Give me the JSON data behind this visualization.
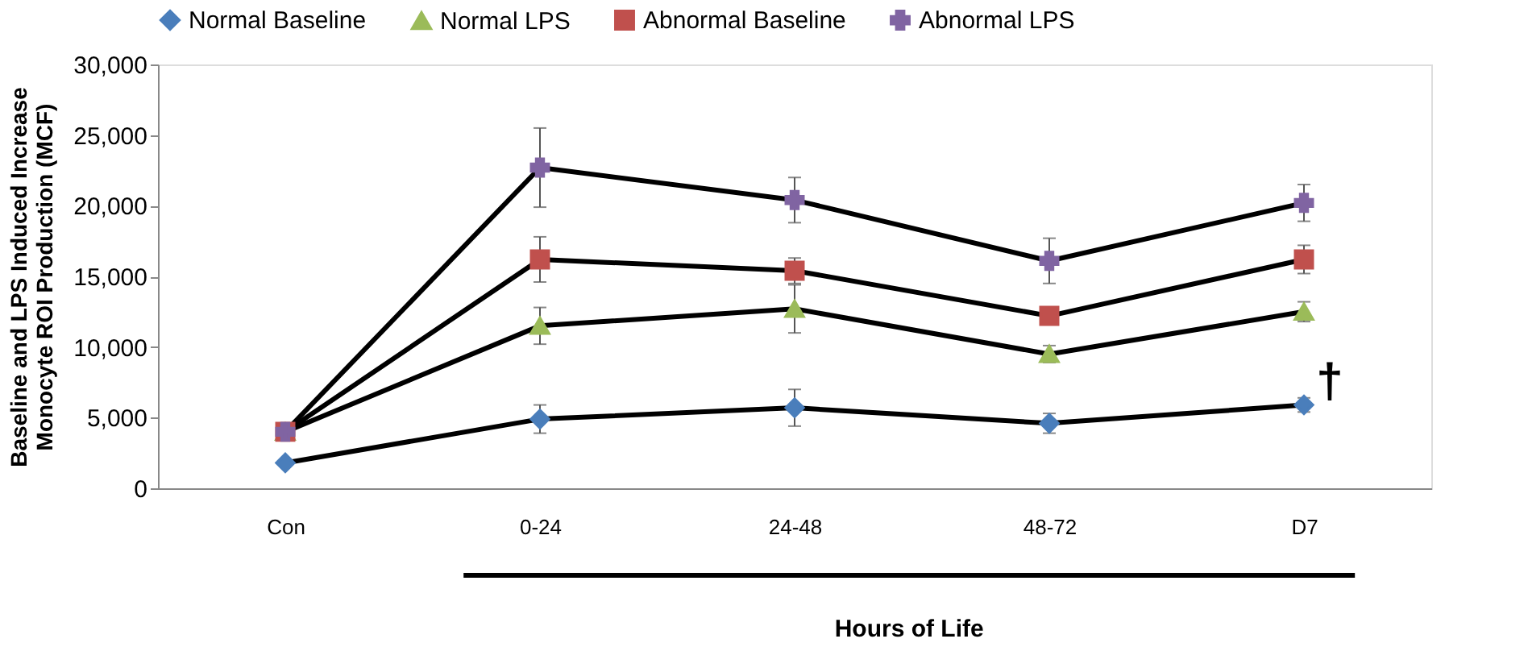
{
  "chart_data": {
    "type": "line",
    "xlabel": "Hours of Life",
    "ylabel": "Baseline and LPS Induced Increase Monocyte ROI Production (MCF)",
    "categories": [
      "Con",
      "0-24",
      "24-48",
      "48-72",
      "D7"
    ],
    "series": [
      {
        "name": "Normal Baseline",
        "color": "#4a7ebb",
        "marker": "diamond",
        "values": [
          1800,
          4900,
          5700,
          4600,
          5900
        ],
        "errors": [
          null,
          1000,
          1300,
          700,
          500
        ]
      },
      {
        "name": "Normal LPS",
        "color": "#9bbb59",
        "marker": "triangle",
        "values": [
          4000,
          11500,
          12700,
          9500,
          12500
        ],
        "errors": [
          null,
          1300,
          1700,
          600,
          700
        ]
      },
      {
        "name": "Abnormal Baseline",
        "color": "#c0504d",
        "marker": "square",
        "values": [
          4000,
          16200,
          15400,
          12200,
          16200
        ],
        "errors": [
          null,
          1600,
          900,
          null,
          1000
        ]
      },
      {
        "name": "Abnormal LPS",
        "color": "#8064a2",
        "marker": "cross",
        "values": [
          4000,
          22700,
          20400,
          16100,
          20200
        ],
        "errors": [
          null,
          2800,
          1600,
          1600,
          1300
        ]
      }
    ],
    "annotations": [
      {
        "text": "†",
        "x": "D7",
        "y": 5900
      }
    ],
    "ylim": [
      0,
      30000
    ],
    "yticks": [
      {
        "value": 0,
        "label": "0"
      },
      {
        "value": 5000,
        "label": "5,000"
      },
      {
        "value": 10000,
        "label": "10,000"
      },
      {
        "value": 15000,
        "label": "15,000"
      },
      {
        "value": 20000,
        "label": "20,000"
      },
      {
        "value": 25000,
        "label": "25,000"
      },
      {
        "value": 30000,
        "label": "30,000"
      }
    ],
    "grid": false,
    "legend": "top",
    "line_style": "solid"
  }
}
